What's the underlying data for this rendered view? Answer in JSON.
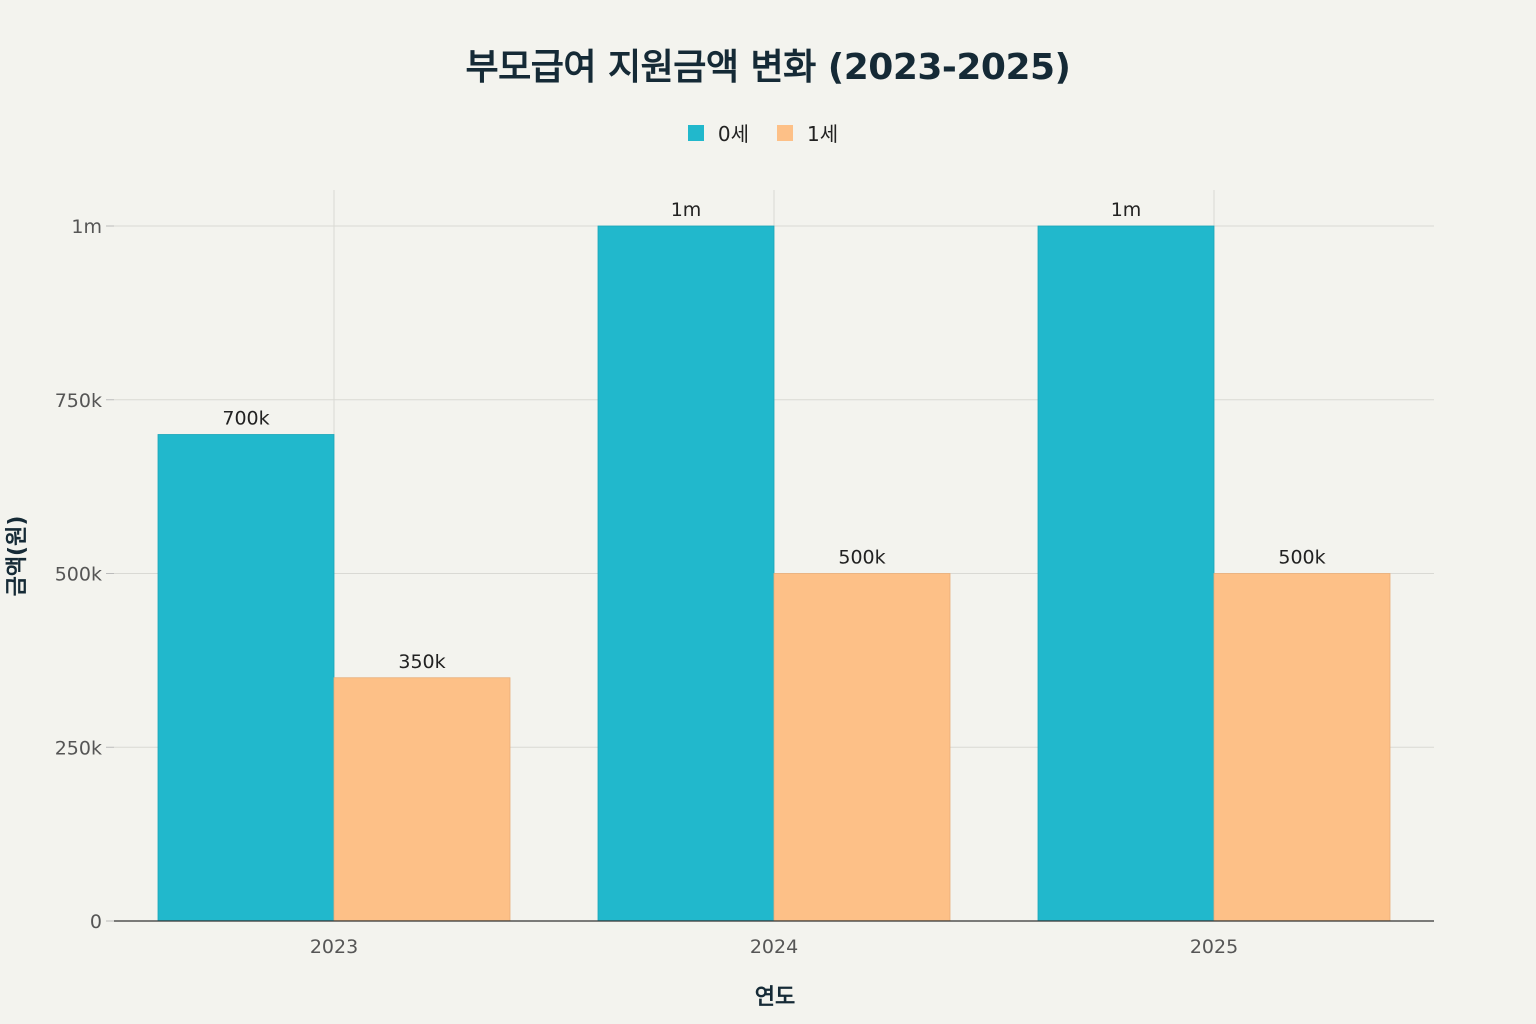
{
  "chart_data": {
    "type": "bar",
    "title": "부모급여 지원금액 변화 (2023-2025)",
    "xlabel": "연도",
    "ylabel": "금액(원)",
    "categories": [
      "2023",
      "2024",
      "2025"
    ],
    "series": [
      {
        "name": "0세",
        "color": "#21b8cc",
        "values": [
          700000,
          1000000,
          1000000
        ],
        "labels": [
          "700k",
          "1m",
          "1m"
        ]
      },
      {
        "name": "1세",
        "color": "#fdc087",
        "values": [
          350000,
          500000,
          500000
        ],
        "labels": [
          "350k",
          "500k",
          "500k"
        ]
      }
    ],
    "ylim": [
      0,
      1000000
    ],
    "yticks": [
      0,
      250000,
      500000,
      750000,
      1000000
    ],
    "ytick_labels": [
      "0",
      "250k",
      "500k",
      "750k",
      "1m"
    ],
    "grid": true,
    "legend_position": "top-center"
  }
}
